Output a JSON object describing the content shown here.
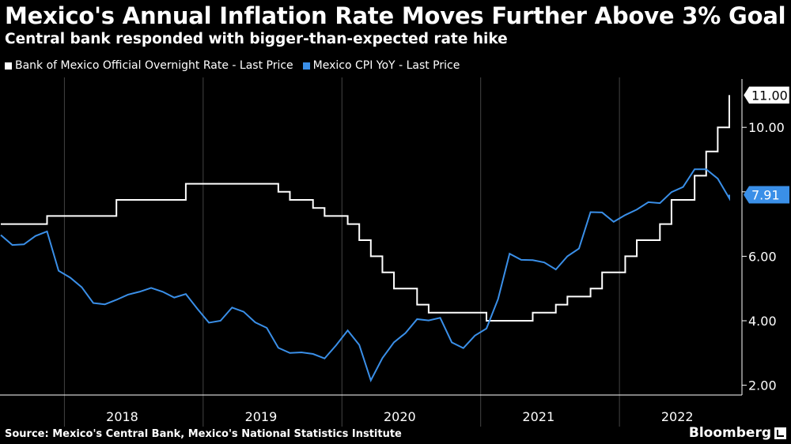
{
  "header": {
    "title": "Mexico's Annual Inflation Rate Moves Further Above 3% Goal",
    "subtitle": "Central bank responded with bigger-than-expected rate hike"
  },
  "footer": {
    "source": "Source: Mexico's Central Bank, Mexico's National Statistics Institute",
    "brand": "Bloomberg"
  },
  "colors": {
    "background": "#000000",
    "rate": "#ffffff",
    "cpi": "#3a8fe8",
    "grid": "#444444"
  },
  "chart_data": {
    "type": "line",
    "title": "Mexico's Annual Inflation Rate Moves Further Above 3% Goal",
    "subtitle": "Central bank responded with bigger-than-expected rate hike",
    "legend_position": "top-left",
    "grid": "vertical year separators only",
    "x_range": [
      "2017-08",
      "2022-11"
    ],
    "ylim": [
      1.5,
      11.5
    ],
    "y_ticks": [
      2,
      4,
      6,
      8,
      10
    ],
    "y_tick_labels": [
      "2.00",
      "4.00",
      "6.00",
      "7.91",
      "10.00",
      "11.00"
    ],
    "x_tick_labels": [
      "2018",
      "2019",
      "2020",
      "2021",
      "2022"
    ],
    "year_separators": [
      "2018-01",
      "2019-01",
      "2020-01",
      "2021-01",
      "2022-01"
    ],
    "series": [
      {
        "name": "Bank of Mexico Official Overnight Rate - Last Price",
        "style": "step",
        "last_value_label": "11.00",
        "points": [
          [
            "2017-08",
            7.0
          ],
          [
            "2017-12",
            7.25
          ],
          [
            "2018-06",
            7.75
          ],
          [
            "2018-12",
            8.25
          ],
          [
            "2019-08",
            8.0
          ],
          [
            "2019-09",
            7.75
          ],
          [
            "2019-11",
            7.5
          ],
          [
            "2019-12",
            7.25
          ],
          [
            "2020-02",
            7.0
          ],
          [
            "2020-03",
            6.5
          ],
          [
            "2020-04",
            6.0
          ],
          [
            "2020-05",
            5.5
          ],
          [
            "2020-06",
            5.0
          ],
          [
            "2020-08",
            4.5
          ],
          [
            "2020-09",
            4.25
          ],
          [
            "2021-02",
            4.0
          ],
          [
            "2021-06",
            4.25
          ],
          [
            "2021-08",
            4.5
          ],
          [
            "2021-09",
            4.75
          ],
          [
            "2021-11",
            5.0
          ],
          [
            "2021-12",
            5.5
          ],
          [
            "2022-02",
            6.0
          ],
          [
            "2022-03",
            6.5
          ],
          [
            "2022-05",
            7.0
          ],
          [
            "2022-06",
            7.75
          ],
          [
            "2022-08",
            8.5
          ],
          [
            "2022-09",
            9.25
          ],
          [
            "2022-10",
            10.0
          ],
          [
            "2022-11",
            10.5
          ],
          [
            "2022-12",
            11.0
          ]
        ]
      },
      {
        "name": "Mexico CPI YoY - Last Price",
        "style": "line",
        "last_value_label": "7.91",
        "points": [
          [
            "2017-08",
            6.66
          ],
          [
            "2017-09",
            6.35
          ],
          [
            "2017-10",
            6.37
          ],
          [
            "2017-11",
            6.63
          ],
          [
            "2017-12",
            6.77
          ],
          [
            "2018-01",
            5.55
          ],
          [
            "2018-02",
            5.34
          ],
          [
            "2018-03",
            5.04
          ],
          [
            "2018-04",
            4.55
          ],
          [
            "2018-05",
            4.51
          ],
          [
            "2018-06",
            4.65
          ],
          [
            "2018-07",
            4.81
          ],
          [
            "2018-08",
            4.9
          ],
          [
            "2018-09",
            5.02
          ],
          [
            "2018-10",
            4.9
          ],
          [
            "2018-11",
            4.72
          ],
          [
            "2018-12",
            4.83
          ],
          [
            "2019-01",
            4.37
          ],
          [
            "2019-02",
            3.94
          ],
          [
            "2019-03",
            4.0
          ],
          [
            "2019-04",
            4.41
          ],
          [
            "2019-05",
            4.28
          ],
          [
            "2019-06",
            3.95
          ],
          [
            "2019-07",
            3.78
          ],
          [
            "2019-08",
            3.16
          ],
          [
            "2019-09",
            3.0
          ],
          [
            "2019-10",
            3.02
          ],
          [
            "2019-11",
            2.97
          ],
          [
            "2019-12",
            2.83
          ],
          [
            "2020-01",
            3.24
          ],
          [
            "2020-02",
            3.7
          ],
          [
            "2020-03",
            3.25
          ],
          [
            "2020-04",
            2.15
          ],
          [
            "2020-05",
            2.84
          ],
          [
            "2020-06",
            3.33
          ],
          [
            "2020-07",
            3.62
          ],
          [
            "2020-08",
            4.05
          ],
          [
            "2020-09",
            4.01
          ],
          [
            "2020-10",
            4.09
          ],
          [
            "2020-11",
            3.33
          ],
          [
            "2020-12",
            3.15
          ],
          [
            "2021-01",
            3.54
          ],
          [
            "2021-02",
            3.76
          ],
          [
            "2021-03",
            4.67
          ],
          [
            "2021-04",
            6.08
          ],
          [
            "2021-05",
            5.89
          ],
          [
            "2021-06",
            5.88
          ],
          [
            "2021-07",
            5.81
          ],
          [
            "2021-08",
            5.59
          ],
          [
            "2021-09",
            6.0
          ],
          [
            "2021-10",
            6.24
          ],
          [
            "2021-11",
            7.37
          ],
          [
            "2021-12",
            7.36
          ],
          [
            "2022-01",
            7.07
          ],
          [
            "2022-02",
            7.28
          ],
          [
            "2022-03",
            7.45
          ],
          [
            "2022-04",
            7.68
          ],
          [
            "2022-05",
            7.65
          ],
          [
            "2022-06",
            7.99
          ],
          [
            "2022-07",
            8.15
          ],
          [
            "2022-08",
            8.7
          ],
          [
            "2022-09",
            8.7
          ],
          [
            "2022-10",
            8.41
          ],
          [
            "2022-11",
            7.8
          ],
          [
            "2022-12",
            7.82
          ],
          [
            "2023-01",
            7.91
          ]
        ]
      }
    ]
  }
}
